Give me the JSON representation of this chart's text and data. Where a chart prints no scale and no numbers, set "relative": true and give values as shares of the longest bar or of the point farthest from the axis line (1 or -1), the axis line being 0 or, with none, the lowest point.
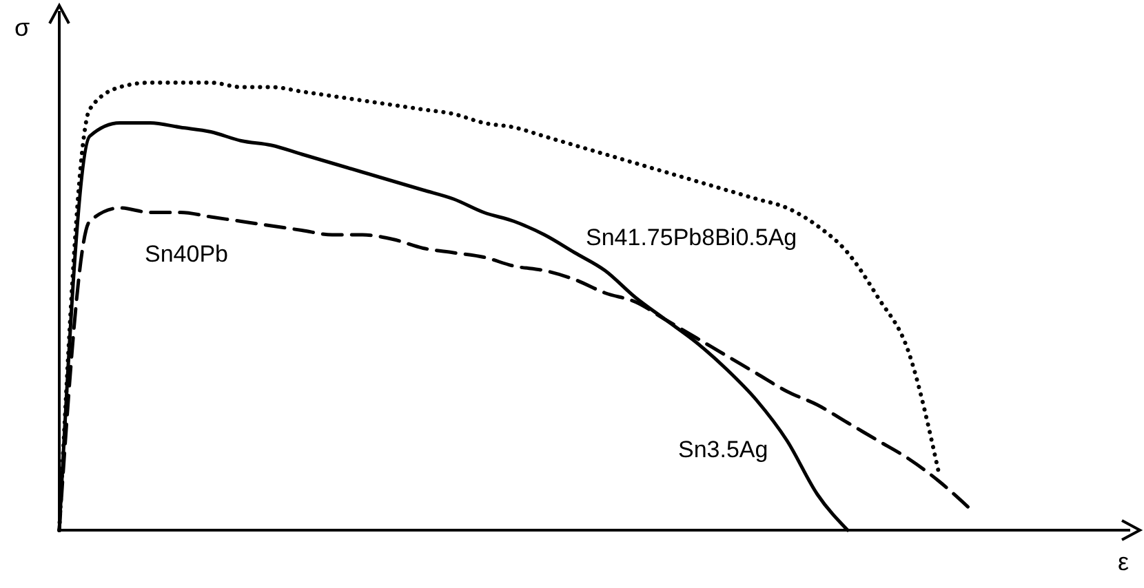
{
  "chart_data": {
    "type": "line",
    "relative": true,
    "annotations": [
      "ε"
    ],
    "ylabel": "σ",
    "legend": false,
    "categories": [
      null,
      null,
      null,
      null,
      null,
      null,
      null,
      null,
      null,
      null,
      null,
      null,
      null,
      null,
      null,
      null,
      null,
      null,
      null,
      null,
      null,
      null,
      null,
      null,
      null,
      null,
      null,
      null,
      null,
      null,
      null
    ],
    "series": [
      {
        "name": "Sn41.75Pb8Bi0.5Ag",
        "color": "#000000",
        "line_style": "dotted",
        "values": [
          0,
          0.94,
          0.99,
          1.0,
          1,
          1,
          0.99,
          0.99,
          0.98,
          0.97,
          0.96,
          0.95,
          0.94,
          0.93,
          0.91,
          0.9,
          0.88,
          0.86,
          0.84,
          0.82,
          0.8,
          0.78,
          0.76,
          0.74,
          0.72,
          0.68,
          0.62,
          0.52,
          0.4,
          0.13,
          null
        ]
      },
      {
        "name": "Sn3.5Ag",
        "color": "#000000",
        "line_style": "solid",
        "values": [
          0,
          0.88,
          0.91,
          0.91,
          0.9,
          0.89,
          0.87,
          0.86,
          0.84,
          0.82,
          0.8,
          0.78,
          0.76,
          0.74,
          0.71,
          0.69,
          0.66,
          0.62,
          0.58,
          0.52,
          0.47,
          0.42,
          0.36,
          0.29,
          0.2,
          0.08,
          0,
          null,
          null,
          null,
          null
        ]
      },
      {
        "name": "Sn40Pb",
        "color": "#000000",
        "line_style": "dashed",
        "values": [
          0,
          0.69,
          0.72,
          0.71,
          0.71,
          0.7,
          0.69,
          0.68,
          0.67,
          0.66,
          0.66,
          0.65,
          0.63,
          0.62,
          0.61,
          0.59,
          0.58,
          0.56,
          0.53,
          0.51,
          0.47,
          0.43,
          0.39,
          0.35,
          0.31,
          0.28,
          0.24,
          0.2,
          0.16,
          0.11,
          0.05
        ]
      }
    ]
  }
}
